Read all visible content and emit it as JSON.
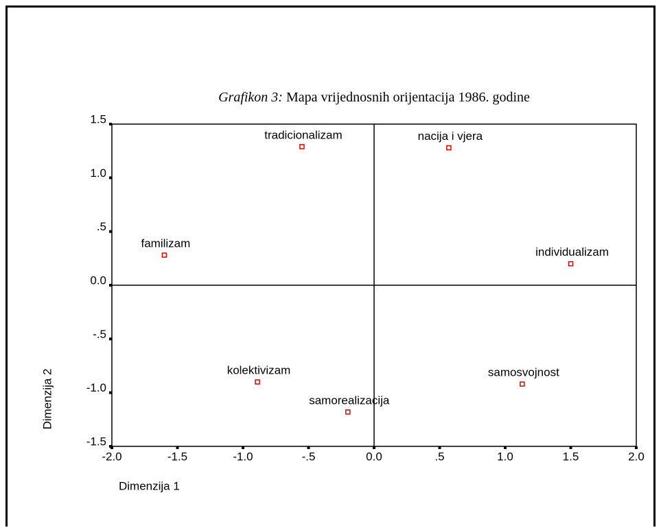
{
  "chart_data": {
    "type": "scatter",
    "title_prefix": "Grafikon 3:",
    "title": "Mapa vrijednosnih orijentacija 1986. godine",
    "x_label": "Dimenzija 1",
    "y_label": "Dimenzija 2",
    "labels": [
      "tradicionalizam",
      "nacija i vjera",
      "familizam",
      "individualizam",
      "kolektivizam",
      "samorealizacija",
      "samosvojnost"
    ],
    "x": [
      -0.55,
      0.57,
      -1.6,
      1.5,
      -0.89,
      -0.2,
      1.13
    ],
    "y": [
      1.29,
      1.28,
      0.28,
      0.2,
      -0.9,
      -1.18,
      -0.92
    ],
    "color": "#e00000",
    "xlim": [
      -2.0,
      2.0
    ],
    "ylim": [
      -1.5,
      1.5
    ],
    "xticks": [
      {
        "value": -2.0,
        "label": "-2.0"
      },
      {
        "value": -1.5,
        "label": "-1.5"
      },
      {
        "value": -1.0,
        "label": "-1.0"
      },
      {
        "value": -0.5,
        "label": "-.5"
      },
      {
        "value": 0,
        "label": "0.0"
      },
      {
        "value": 0.5,
        "label": ".5"
      },
      {
        "value": 1.0,
        "label": "1.0"
      },
      {
        "value": 1.5,
        "label": "1.5"
      },
      {
        "value": 2.0,
        "label": "2.0"
      }
    ],
    "yticks": [
      {
        "value": 1.5,
        "label": "1.5"
      },
      {
        "value": 1.0,
        "label": "1.0"
      },
      {
        "value": 0.5,
        "label": ".5"
      },
      {
        "value": 0,
        "label": "0.0"
      },
      {
        "value": -0.5,
        "label": "-.5"
      },
      {
        "value": -1.0,
        "label": "-1.0"
      },
      {
        "value": -1.5,
        "label": "-1.5"
      }
    ]
  }
}
